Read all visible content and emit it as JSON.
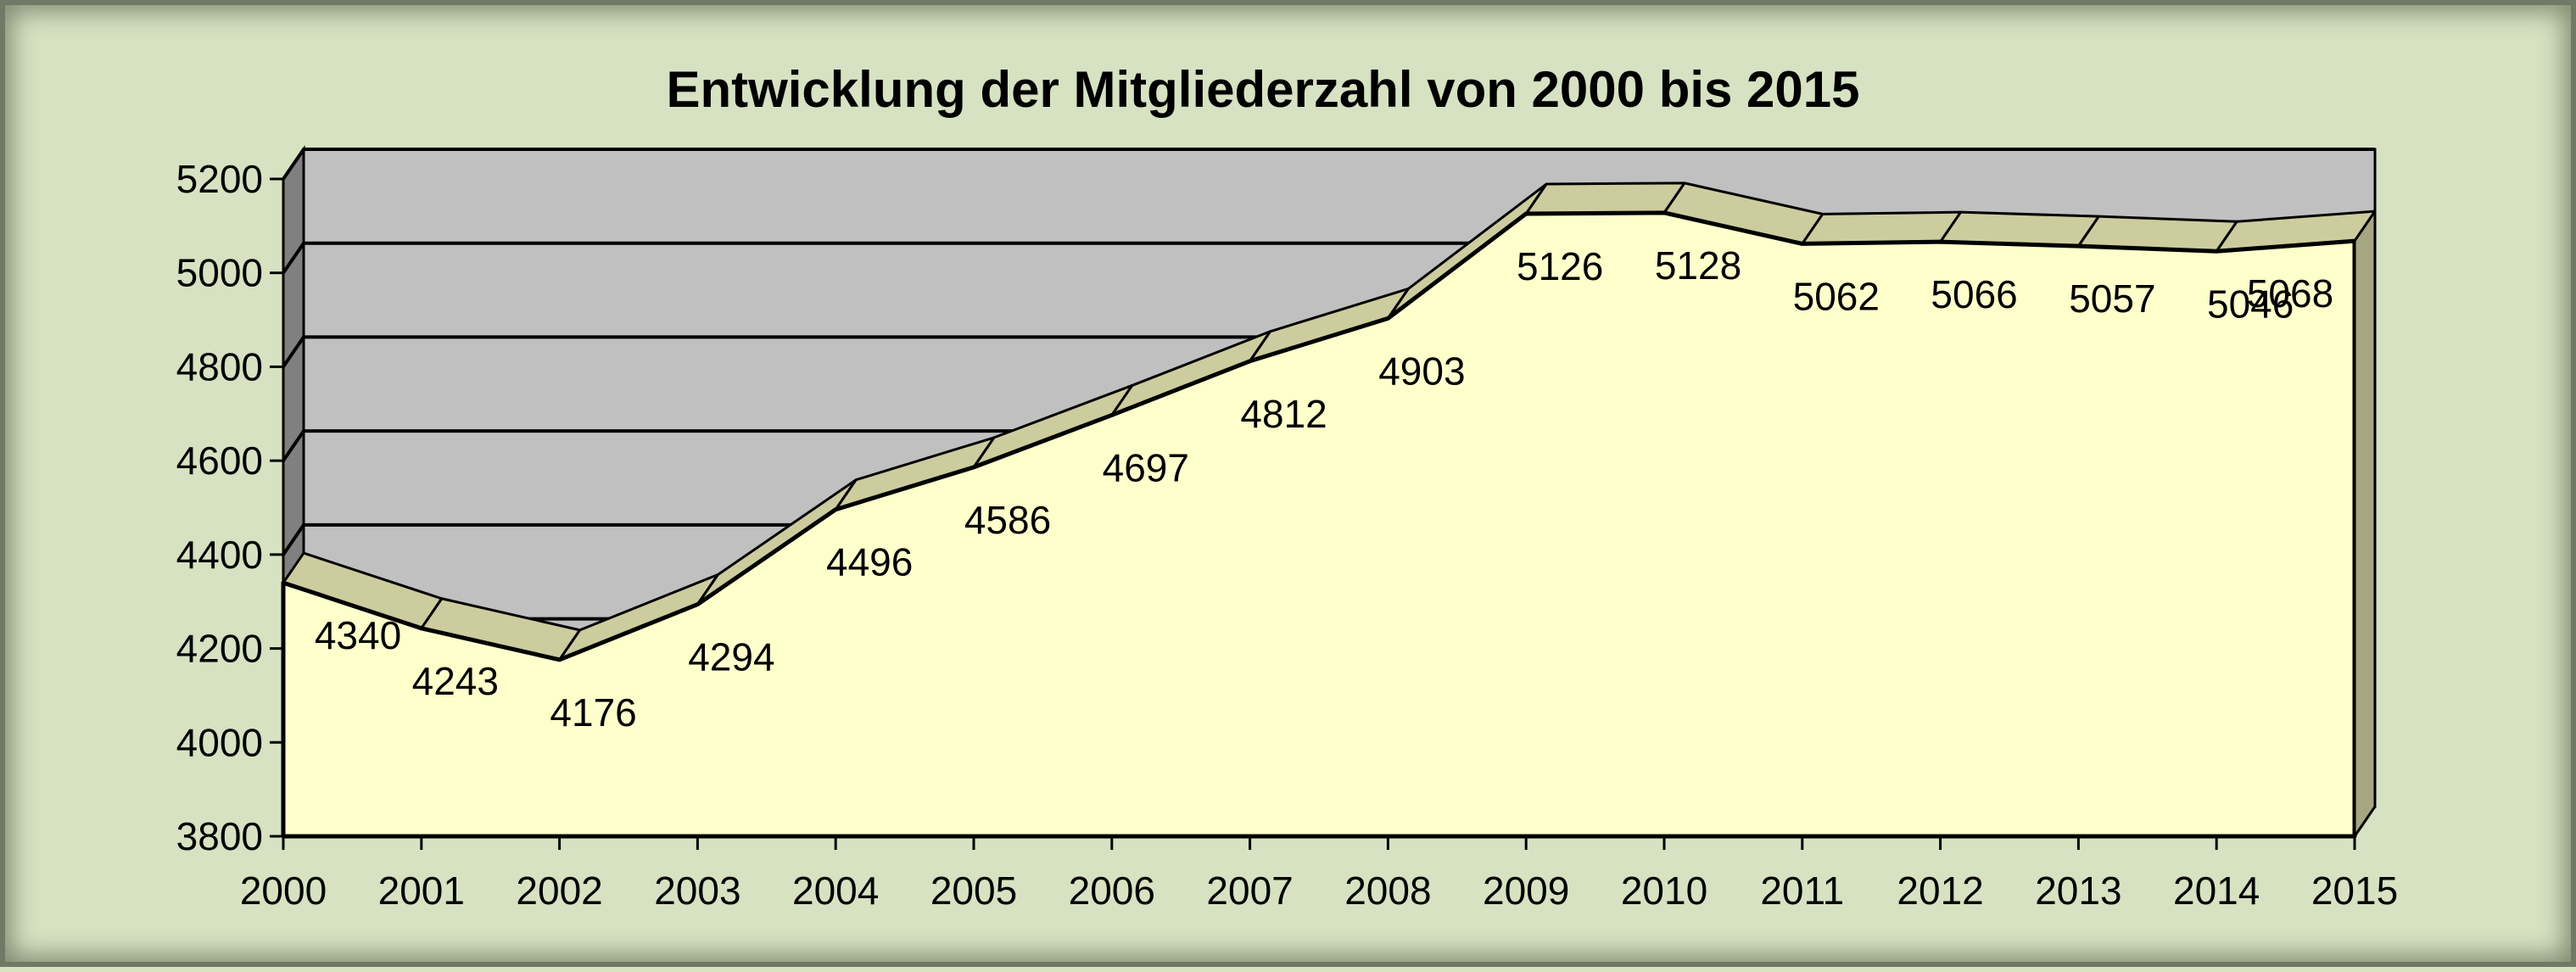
{
  "chart_data": {
    "type": "area",
    "title": "Entwicklung der Mitgliederzahl von 2000 bis 2015",
    "xlabel": "",
    "ylabel": "",
    "x": [
      "2000",
      "2001",
      "2002",
      "2003",
      "2004",
      "2005",
      "2006",
      "2007",
      "2008",
      "2009",
      "2010",
      "2011",
      "2012",
      "2013",
      "2014",
      "2015"
    ],
    "series": [
      {
        "values": [
          4340,
          4243,
          4176,
          4294,
          4496,
          4586,
          4697,
          4812,
          4903,
          5126,
          5128,
          5062,
          5066,
          5057,
          5046,
          5068
        ]
      }
    ],
    "data_labels": [
      "4340",
      "4243",
      "4176",
      "4294",
      "4496",
      "4586",
      "4697",
      "4812",
      "4903",
      "5126",
      "5128",
      "5062",
      "5066",
      "5057",
      "5046",
      "5068"
    ],
    "y_ticks": [
      "3800",
      "4000",
      "4200",
      "4400",
      "4600",
      "4800",
      "5000",
      "5200"
    ],
    "ylim": [
      3800,
      5200
    ],
    "grid": true,
    "legend": "none",
    "is_3d": true,
    "colors": {
      "background": "#d6e2c2",
      "plot_back_wall": "#c0c0c0",
      "area_fill": "#ffffcc",
      "ribbon_top": "#cccc9e",
      "ribbon_side": "#a6a680",
      "left_wall": "#808080",
      "gridline": "#000000"
    }
  }
}
